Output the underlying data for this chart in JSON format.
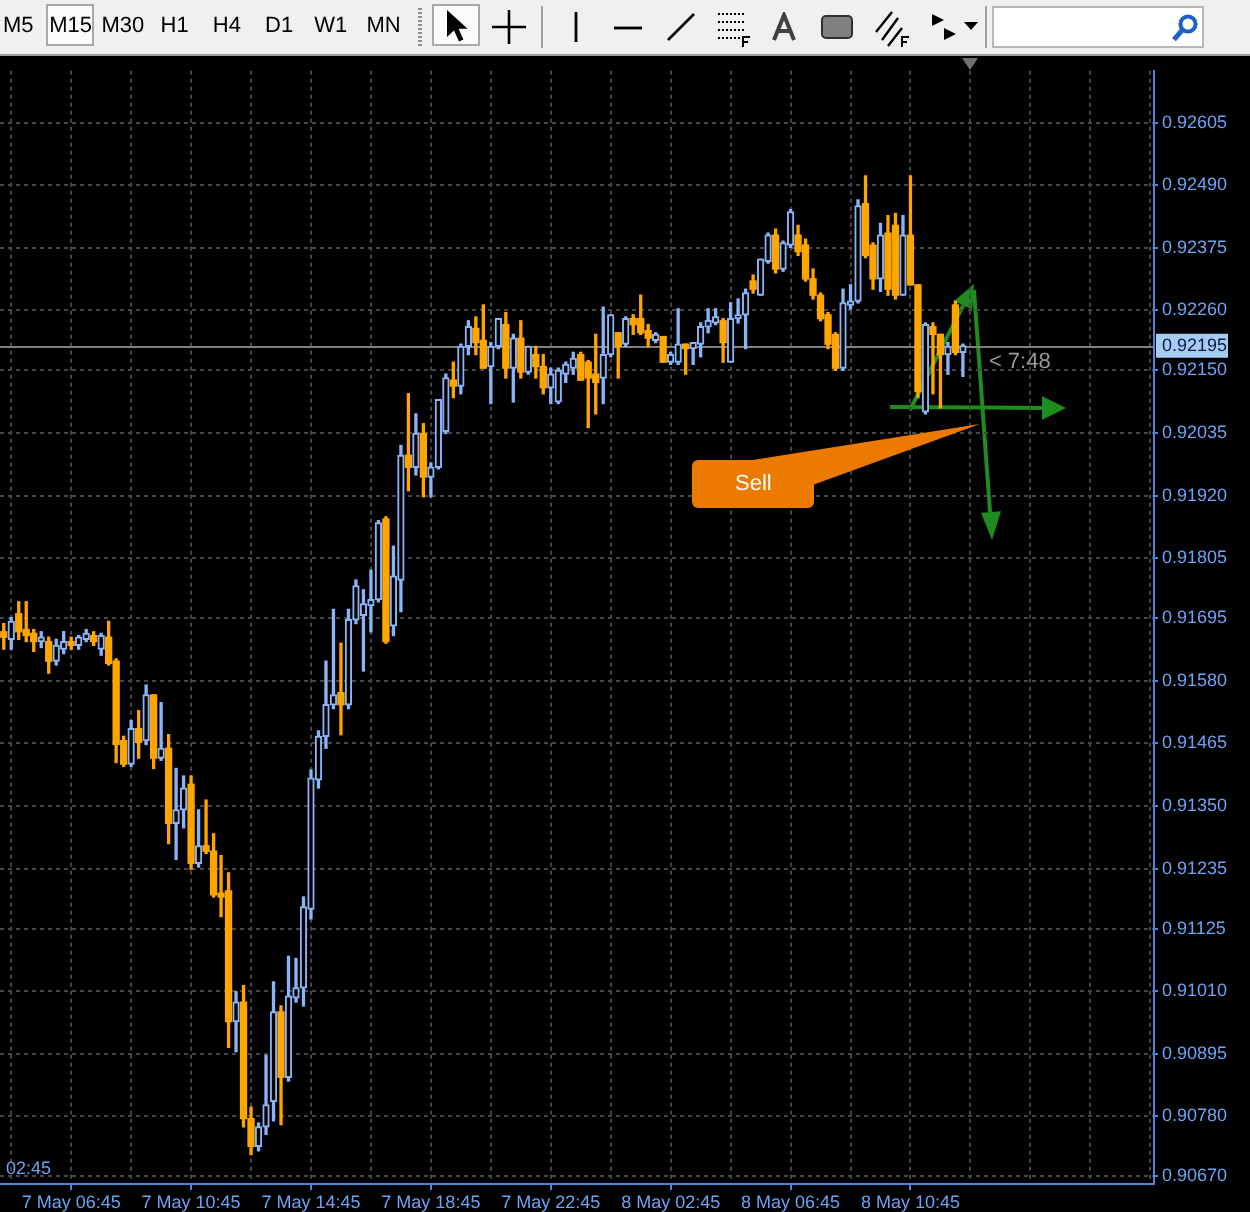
{
  "chart_data": {
    "type": "candlestick",
    "categories": [
      null,
      null,
      null,
      null,
      null,
      null,
      null,
      null,
      null,
      "7 May 06:45",
      null,
      null,
      null,
      null,
      null,
      null,
      null,
      null,
      null,
      null,
      null,
      null,
      null,
      null,
      null,
      "7 May 10:45",
      null,
      null,
      null,
      null,
      null,
      null,
      null,
      null,
      null,
      null,
      null,
      null,
      null,
      null,
      null,
      "7 May 14:45",
      null,
      null,
      null,
      null,
      null,
      null,
      null,
      null,
      null,
      null,
      null,
      null,
      null,
      null,
      null,
      "7 May 18:45",
      null,
      null,
      null,
      null,
      null,
      null,
      null,
      null,
      null,
      null,
      null,
      null,
      null,
      null,
      null,
      "7 May 22:45",
      null,
      null,
      null,
      null,
      null,
      null,
      null,
      null,
      null,
      null,
      null,
      null,
      null,
      null,
      null,
      "8 May 02:45",
      null,
      null,
      null,
      null,
      null,
      null,
      null,
      null,
      null,
      null,
      null,
      null,
      null,
      null,
      null,
      "8 May 06:45",
      null,
      null,
      null,
      null,
      null,
      null,
      null,
      null,
      null,
      null,
      null,
      null,
      null,
      null,
      null,
      "8 May 10:45",
      null,
      null,
      null,
      null,
      null,
      null,
      null,
      null,
      null,
      null,
      null,
      null,
      null,
      null,
      null,
      null,
      null,
      null,
      null,
      null,
      null,
      null,
      null,
      null,
      null,
      null,
      null,
      null,
      null,
      null,
      null,
      null
    ],
    "ohlc": [
      [
        0.9167,
        0.91685,
        0.91638,
        0.9166
      ],
      [
        0.91656,
        0.91696,
        0.91638,
        0.91689
      ],
      [
        0.91703,
        0.91725,
        0.91656,
        0.9167
      ],
      [
        0.91674,
        0.91725,
        0.91652,
        0.91663
      ],
      [
        0.91667,
        0.91674,
        0.91634,
        0.91652
      ],
      [
        0.91652,
        0.9167,
        0.91641,
        0.9166
      ],
      [
        0.91652,
        0.9166,
        0.91594,
        0.91616
      ],
      [
        0.91616,
        0.91656,
        0.91609,
        0.91645
      ],
      [
        0.91638,
        0.9167,
        0.9163,
        0.91652
      ],
      [
        0.91652,
        0.9166,
        0.91638,
        0.91645
      ],
      [
        0.91645,
        0.91663,
        0.91638,
        0.9166
      ],
      [
        0.91656,
        0.91674,
        0.91652,
        0.91667
      ],
      [
        0.91663,
        0.9167,
        0.91645,
        0.91652
      ],
      [
        0.91638,
        0.91667,
        0.91627,
        0.91663
      ],
      [
        0.9166,
        0.91689,
        0.91609,
        0.91612
      ],
      [
        0.91616,
        0.9162,
        0.9143,
        0.91463
      ],
      [
        0.9147,
        0.91478,
        0.91423,
        0.91427
      ],
      [
        0.91427,
        0.91507,
        0.91423,
        0.91492
      ],
      [
        0.91492,
        0.91525,
        0.91438,
        0.91467
      ],
      [
        0.9147,
        0.91572,
        0.91463,
        0.91554
      ],
      [
        0.91554,
        0.91554,
        0.91419,
        0.91438
      ],
      [
        0.91438,
        0.9154,
        0.91434,
        0.91456
      ],
      [
        0.91456,
        0.91481,
        0.91281,
        0.91318
      ],
      [
        0.91318,
        0.91419,
        0.91252,
        0.91343
      ],
      [
        0.91343,
        0.91405,
        0.9131,
        0.91383
      ],
      [
        0.9139,
        0.91405,
        0.91234,
        0.91245
      ],
      [
        0.91245,
        0.91343,
        0.91238,
        0.91277
      ],
      [
        0.91277,
        0.91361,
        0.91263,
        0.91267
      ],
      [
        0.91267,
        0.91299,
        0.91183,
        0.91187
      ],
      [
        0.9119,
        0.91259,
        0.91147,
        0.91183
      ],
      [
        0.91194,
        0.91227,
        0.90907,
        0.90954
      ],
      [
        0.90954,
        0.91009,
        0.90899,
        0.9099
      ],
      [
        0.9099,
        0.9102,
        0.90761,
        0.90776
      ],
      [
        0.90776,
        0.90797,
        0.9071,
        0.90725
      ],
      [
        0.90725,
        0.90768,
        0.90717,
        0.90761
      ],
      [
        0.90761,
        0.90892,
        0.90747,
        0.90801
      ],
      [
        0.90808,
        0.91027,
        0.90772,
        0.90972
      ],
      [
        0.90972,
        0.90983,
        0.90765,
        0.90852
      ],
      [
        0.90852,
        0.91074,
        0.90845,
        0.91001
      ],
      [
        0.90998,
        0.9107,
        0.9099,
        0.91016
      ],
      [
        0.91016,
        0.91183,
        0.90983,
        0.91165
      ],
      [
        0.91161,
        0.91416,
        0.91143,
        0.91401
      ],
      [
        0.91398,
        0.91488,
        0.91383,
        0.91478
      ],
      [
        0.91478,
        0.91616,
        0.91456,
        0.91536
      ],
      [
        0.91536,
        0.91711,
        0.91529,
        0.91554
      ],
      [
        0.91558,
        0.91649,
        0.91481,
        0.91536
      ],
      [
        0.91536,
        0.91711,
        0.91529,
        0.91692
      ],
      [
        0.91692,
        0.91765,
        0.91685,
        0.91754
      ],
      [
        0.917,
        0.91747,
        0.91598,
        0.91721
      ],
      [
        0.91718,
        0.91783,
        0.9167,
        0.91729
      ],
      [
        0.91729,
        0.91874,
        0.91725,
        0.9187
      ],
      [
        0.91877,
        0.91881,
        0.91649,
        0.91652
      ],
      [
        0.91681,
        0.91827,
        0.91663,
        0.91772
      ],
      [
        0.91765,
        0.92012,
        0.91707,
        0.91994
      ],
      [
        0.91994,
        0.92107,
        0.91929,
        0.91972
      ],
      [
        0.91972,
        0.9207,
        0.91958,
        0.92034
      ],
      [
        0.92034,
        0.92052,
        0.91918,
        0.91954
      ],
      [
        0.91954,
        0.9198,
        0.91918,
        0.91972
      ],
      [
        0.91972,
        0.92096,
        0.91969,
        0.92096
      ],
      [
        0.92038,
        0.92143,
        0.92034,
        0.92136
      ],
      [
        0.92132,
        0.92165,
        0.921,
        0.92121
      ],
      [
        0.92121,
        0.92198,
        0.92107,
        0.92194
      ],
      [
        0.92194,
        0.92241,
        0.92179,
        0.9223
      ],
      [
        0.92227,
        0.92248,
        0.92179,
        0.92201
      ],
      [
        0.92205,
        0.9227,
        0.92154,
        0.92154
      ],
      [
        0.92157,
        0.92201,
        0.92089,
        0.92194
      ],
      [
        0.92194,
        0.92245,
        0.9219,
        0.92245
      ],
      [
        0.92234,
        0.92256,
        0.92136,
        0.92154
      ],
      [
        0.92154,
        0.92216,
        0.92092,
        0.92209
      ],
      [
        0.92209,
        0.92241,
        0.92136,
        0.92147
      ],
      [
        0.92147,
        0.92194,
        0.92143,
        0.92194
      ],
      [
        0.92179,
        0.92194,
        0.92136,
        0.92157
      ],
      [
        0.92157,
        0.92179,
        0.92107,
        0.92118
      ],
      [
        0.92118,
        0.92154,
        0.92089,
        0.92143
      ],
      [
        0.92092,
        0.92154,
        0.92089,
        0.9215
      ],
      [
        0.92143,
        0.92165,
        0.92128,
        0.92161
      ],
      [
        0.92154,
        0.92183,
        0.92143,
        0.92172
      ],
      [
        0.92179,
        0.92183,
        0.92132,
        0.92132
      ],
      [
        0.92165,
        0.92168,
        0.92045,
        0.92136
      ],
      [
        0.92143,
        0.92216,
        0.9207,
        0.92128
      ],
      [
        0.92136,
        0.92266,
        0.92089,
        0.92179
      ],
      [
        0.92179,
        0.92252,
        0.92175,
        0.92252
      ],
      [
        0.92219,
        0.92219,
        0.92136,
        0.92194
      ],
      [
        0.92198,
        0.92248,
        0.92194,
        0.92245
      ],
      [
        0.92245,
        0.92252,
        0.92216,
        0.92234
      ],
      [
        0.92245,
        0.92288,
        0.92216,
        0.92219
      ],
      [
        0.92223,
        0.92234,
        0.92194,
        0.92209
      ],
      [
        0.92205,
        0.92219,
        0.92201,
        0.92216
      ],
      [
        0.92212,
        0.92212,
        0.92165,
        0.92165
      ],
      [
        0.92165,
        0.92183,
        0.92161,
        0.92179
      ],
      [
        0.92165,
        0.92263,
        0.92161,
        0.92198
      ],
      [
        0.92198,
        0.92198,
        0.92143,
        0.9219
      ],
      [
        0.9219,
        0.92201,
        0.92161,
        0.92201
      ],
      [
        0.92198,
        0.92237,
        0.92175,
        0.9223
      ],
      [
        0.9223,
        0.92263,
        0.92219,
        0.92241
      ],
      [
        0.92237,
        0.92263,
        0.92234,
        0.92248
      ],
      [
        0.92241,
        0.92245,
        0.92165,
        0.92201
      ],
      [
        0.92165,
        0.92274,
        0.92165,
        0.92245
      ],
      [
        0.92245,
        0.92281,
        0.92237,
        0.92252
      ],
      [
        0.92252,
        0.92299,
        0.9219,
        0.92292
      ],
      [
        0.92314,
        0.92325,
        0.92292,
        0.92299
      ],
      [
        0.92288,
        0.92354,
        0.92288,
        0.92354
      ],
      [
        0.9235,
        0.92402,
        0.92347,
        0.92398
      ],
      [
        0.92398,
        0.92409,
        0.92329,
        0.92336
      ],
      [
        0.92336,
        0.92387,
        0.92332,
        0.92384
      ],
      [
        0.9238,
        0.92445,
        0.92376,
        0.92441
      ],
      [
        0.92398,
        0.92416,
        0.92361,
        0.92368
      ],
      [
        0.9238,
        0.92391,
        0.92314,
        0.92318
      ],
      [
        0.92318,
        0.92336,
        0.92281,
        0.92288
      ],
      [
        0.92288,
        0.92292,
        0.92241,
        0.92245
      ],
      [
        0.92252,
        0.92256,
        0.9219,
        0.92198
      ],
      [
        0.92216,
        0.92219,
        0.9215,
        0.92154
      ],
      [
        0.92154,
        0.92299,
        0.9215,
        0.92274
      ],
      [
        0.9227,
        0.92307,
        0.92263,
        0.92277
      ],
      [
        0.92277,
        0.92463,
        0.92274,
        0.92452
      ],
      [
        0.92456,
        0.92507,
        0.92357,
        0.92361
      ],
      [
        0.9238,
        0.92384,
        0.92299,
        0.92318
      ],
      [
        0.92318,
        0.9242,
        0.92295,
        0.92398
      ],
      [
        0.92402,
        0.92434,
        0.92288,
        0.92299
      ],
      [
        0.92416,
        0.92438,
        0.92281,
        0.92288
      ],
      [
        0.92288,
        0.92434,
        0.92288,
        0.92398
      ],
      [
        0.92398,
        0.92507,
        0.92307,
        0.92307
      ],
      [
        0.92307,
        0.92307,
        0.921,
        0.92111
      ],
      [
        0.92074,
        0.92237,
        0.9207,
        0.92234
      ],
      [
        0.9223,
        0.92237,
        0.92107,
        0.92216
      ],
      [
        0.92216,
        0.92216,
        0.92081,
        0.92179
      ],
      [
        0.92179,
        0.92201,
        0.92143,
        0.92194
      ],
      [
        0.9227,
        0.92277,
        0.92179,
        0.92183
      ],
      [
        0.92183,
        0.92198,
        0.92139,
        0.92195
      ],
      null,
      null,
      null,
      null,
      null,
      null,
      null,
      null,
      null,
      null,
      null,
      null,
      null,
      null,
      null,
      null,
      null,
      null,
      null,
      null,
      null,
      null,
      null,
      null,
      null
    ],
    "colors": [
      "#ffa500",
      "#8ab4f8",
      "#ffa500",
      "#ffa500",
      "#ffa500",
      "#8ab4f8",
      "#ffa500",
      "#8ab4f8",
      "#8ab4f8",
      "#ffa500",
      "#8ab4f8",
      "#8ab4f8",
      "#ffa500",
      "#8ab4f8",
      "#ffa500",
      "#ffa500",
      "#ffa500",
      "#8ab4f8",
      "#ffa500",
      "#8ab4f8",
      "#ffa500",
      "#8ab4f8",
      "#ffa500",
      "#8ab4f8",
      "#8ab4f8",
      "#ffa500",
      "#8ab4f8",
      "#ffa500",
      "#ffa500",
      "#ffa500",
      "#ffa500",
      "#8ab4f8",
      "#ffa500",
      "#ffa500",
      "#8ab4f8",
      "#8ab4f8",
      "#8ab4f8",
      "#ffa500",
      "#8ab4f8",
      "#8ab4f8",
      "#8ab4f8",
      "#8ab4f8",
      "#8ab4f8",
      "#8ab4f8",
      "#8ab4f8",
      "#ffa500",
      "#8ab4f8",
      "#8ab4f8",
      "#8ab4f8",
      "#8ab4f8",
      "#8ab4f8",
      "#ffa500",
      "#8ab4f8",
      "#8ab4f8",
      "#ffa500",
      "#8ab4f8",
      "#ffa500",
      "#8ab4f8",
      "#8ab4f8",
      "#8ab4f8",
      "#ffa500",
      "#8ab4f8",
      "#8ab4f8",
      "#ffa500",
      "#ffa500",
      "#8ab4f8",
      "#8ab4f8",
      "#ffa500",
      "#8ab4f8",
      "#ffa500",
      "#8ab4f8",
      "#ffa500",
      "#ffa500",
      "#8ab4f8",
      "#8ab4f8",
      "#8ab4f8",
      "#8ab4f8",
      "#ffa500",
      "#ffa500",
      "#ffa500",
      "#8ab4f8",
      "#8ab4f8",
      "#ffa500",
      "#8ab4f8",
      "#ffa500",
      "#ffa500",
      "#ffa500",
      "#8ab4f8",
      "#ffa500",
      "#8ab4f8",
      "#8ab4f8",
      "#ffa500",
      "#8ab4f8",
      "#8ab4f8",
      "#8ab4f8",
      "#8ab4f8",
      "#ffa500",
      "#8ab4f8",
      "#8ab4f8",
      "#8ab4f8",
      "#ffa500",
      "#8ab4f8",
      "#8ab4f8",
      "#ffa500",
      "#8ab4f8",
      "#8ab4f8",
      "#ffa500",
      "#ffa500",
      "#ffa500",
      "#ffa500",
      "#ffa500",
      "#ffa500",
      "#8ab4f8",
      "#8ab4f8",
      "#8ab4f8",
      "#ffa500",
      "#ffa500",
      "#8ab4f8",
      "#ffa500",
      "#ffa500",
      "#8ab4f8",
      "#ffa500",
      "#ffa500",
      "#8ab4f8",
      "#ffa500",
      "#ffa500",
      "#8ab4f8",
      "#ffa500",
      "#8ab4f8",
      null,
      null,
      null,
      null,
      null,
      null,
      null,
      null,
      null,
      null,
      null,
      null,
      null,
      null,
      null,
      null,
      null,
      null,
      null,
      null,
      null,
      null,
      null,
      null,
      null
    ],
    "ylim": [
      0.90656,
      0.927
    ],
    "yticks": [
      {
        "value": 0.92605,
        "label": "0.92605"
      },
      {
        "value": 0.9249,
        "label": "0.92490"
      },
      {
        "value": 0.92375,
        "label": "0.92375"
      },
      {
        "value": 0.9226,
        "label": "0.92260"
      },
      {
        "value": 0.9215,
        "label": "0.92150"
      },
      {
        "value": 0.92035,
        "label": "0.92035"
      },
      {
        "value": 0.9192,
        "label": "0.91920"
      },
      {
        "value": 0.91805,
        "label": "0.91805"
      },
      {
        "value": 0.91695,
        "label": "0.91695"
      },
      {
        "value": 0.9158,
        "label": "0.91580"
      },
      {
        "value": 0.91465,
        "label": "0.91465"
      },
      {
        "value": 0.9135,
        "label": "0.91350"
      },
      {
        "value": 0.91235,
        "label": "0.91235"
      },
      {
        "value": 0.91125,
        "label": "0.91125"
      },
      {
        "value": 0.9101,
        "label": "0.91010"
      },
      {
        "value": 0.90895,
        "label": "0.90895"
      },
      {
        "value": 0.9078,
        "label": "0.90780"
      },
      {
        "value": 0.9067,
        "label": "0.90670"
      }
    ],
    "grid": true,
    "ref_lines": [
      {
        "axis": "y",
        "value": 0.92195,
        "label": "0.92195",
        "color": "#808080"
      }
    ],
    "annotations": [
      "M5",
      "M15",
      "M30",
      "H1",
      "H4",
      "D1",
      "W1",
      "MN",
      "02:45",
      {
        "text": "< 7:48",
        "y": 0.92195
      },
      "Sell"
    ]
  }
}
